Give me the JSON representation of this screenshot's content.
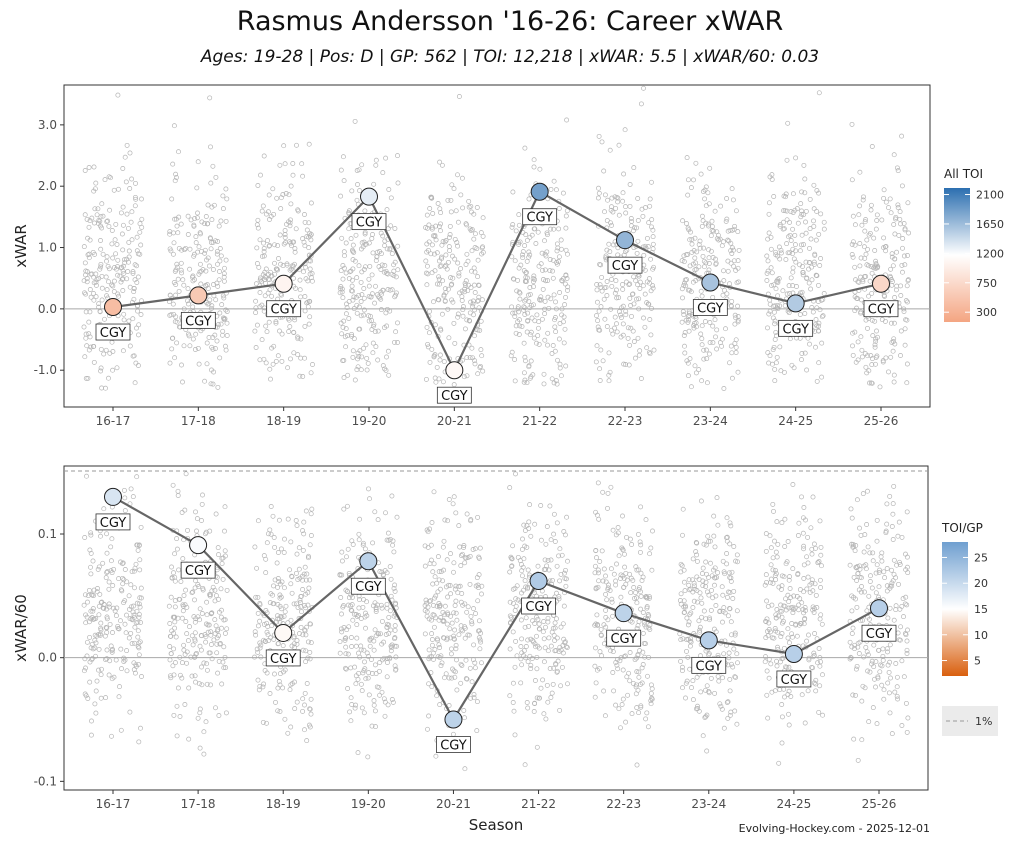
{
  "title": "Rasmus Andersson '16-26: Career xWAR",
  "subtitle": "Ages: 19-28 | Pos: D | GP: 562 | TOI: 12,218 | xWAR: 5.5 | xWAR/60: 0.03",
  "caption": "Evolving-Hockey.com - 2025-12-01",
  "chart_data": [
    {
      "type": "scatter",
      "panel": "top",
      "ylabel": "xWAR",
      "xlabel": "",
      "categories": [
        "16-17",
        "17-18",
        "18-19",
        "19-20",
        "20-21",
        "21-22",
        "22-23",
        "23-24",
        "24-25",
        "25-26"
      ],
      "yticks": [
        -1.0,
        0.0,
        1.0,
        2.0,
        3.0
      ],
      "ytick_labels": [
        "-1.0",
        "0.0",
        "1.0",
        "2.0",
        "3.0"
      ],
      "ylim": [
        -1.6,
        3.65
      ],
      "series": [
        {
          "values": [
            0.03,
            0.22,
            0.41,
            1.83,
            -1.0,
            1.91,
            1.12,
            0.43,
            0.09,
            0.41
          ],
          "teams": [
            "CGY",
            "CGY",
            "CGY",
            "CGY",
            "CGY",
            "CGY",
            "CGY",
            "CGY",
            "CGY",
            "CGY"
          ],
          "color_metric": [
            420,
            560,
            1050,
            1300,
            1100,
            1850,
            1700,
            1600,
            1550,
            720
          ]
        }
      ],
      "background_spread": {
        "min": -1.3,
        "max": 3.6,
        "description": "league distribution jittered per season"
      },
      "legend": {
        "title": "All TOI",
        "ticks": [
          2100,
          1650,
          1200,
          750,
          300
        ],
        "range": [
          150,
          2200
        ],
        "colors": [
          "#f4a582",
          "#ffffff",
          "#2c6fb0"
        ],
        "placement": "right"
      },
      "grid": false
    },
    {
      "type": "scatter",
      "panel": "bottom",
      "ylabel": "xWAR/60",
      "xlabel": "Season",
      "categories": [
        "16-17",
        "17-18",
        "18-19",
        "19-20",
        "20-21",
        "21-22",
        "22-23",
        "23-24",
        "24-25",
        "25-26"
      ],
      "yticks": [
        -0.1,
        0.0,
        0.1
      ],
      "ytick_labels": [
        "-0.1",
        "0.0",
        "0.1"
      ],
      "ylim": [
        -0.107,
        0.155
      ],
      "reference_line": {
        "value": 0.151,
        "label": "1%"
      },
      "series": [
        {
          "values": [
            0.13,
            0.091,
            0.02,
            0.078,
            -0.05,
            0.062,
            0.036,
            0.014,
            0.003,
            0.04
          ],
          "teams": [
            "CGY",
            "CGY",
            "CGY",
            "CGY",
            "CGY",
            "CGY",
            "CGY",
            "CGY",
            "CGY",
            "CGY"
          ],
          "color_metric": [
            18.5,
            15.5,
            14.5,
            21,
            21,
            22,
            21,
            21.5,
            21.5,
            21.5
          ]
        }
      ],
      "background_spread": {
        "min": -0.1,
        "max": 0.15,
        "description": "league distribution jittered per season"
      },
      "legend": {
        "title": "TOI/GP",
        "ticks": [
          25,
          20,
          15,
          10,
          5
        ],
        "range": [
          2,
          28
        ],
        "colors": [
          "#d95f0e",
          "#ffffff",
          "#6f9fd0"
        ],
        "placement": "right"
      },
      "grid": false
    }
  ]
}
